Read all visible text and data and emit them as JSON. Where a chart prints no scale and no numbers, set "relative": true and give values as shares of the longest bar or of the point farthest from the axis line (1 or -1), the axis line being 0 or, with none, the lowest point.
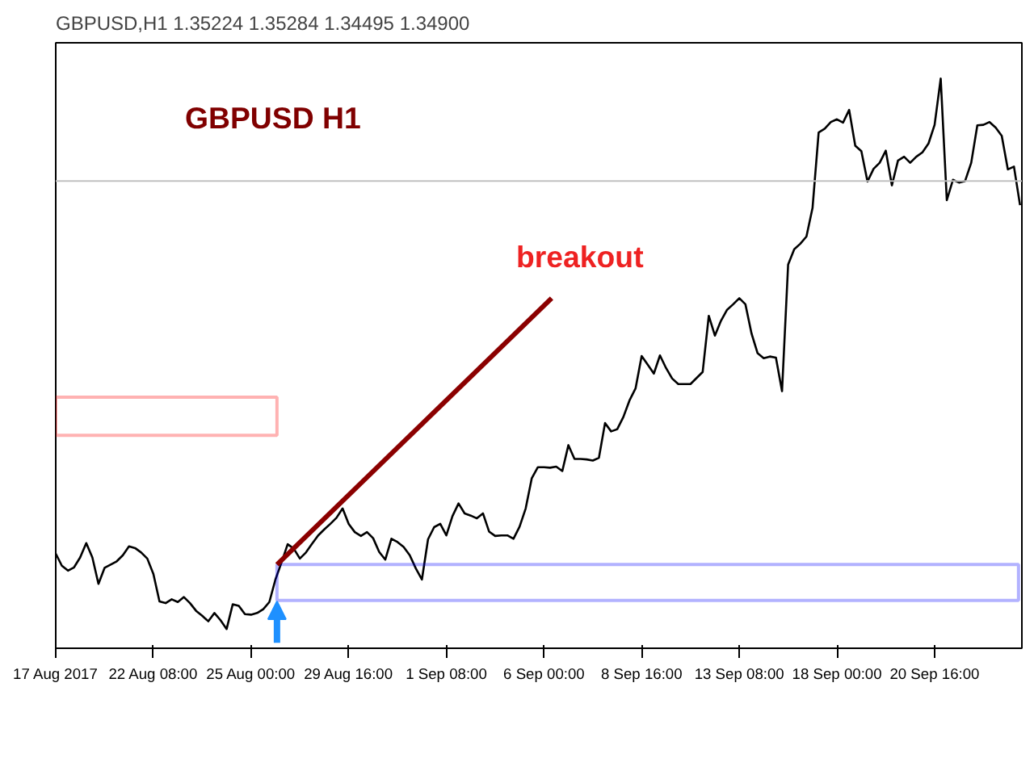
{
  "chart_data": {
    "type": "line",
    "title": "GBPUSD,H1  1.35224 1.35284 1.34495 1.34900",
    "relative": true,
    "grid": false,
    "tick_labels": "x",
    "categories": [
      "17 Aug 2017",
      null,
      null,
      null,
      null,
      null,
      null,
      null,
      null,
      null,
      null,
      null,
      null,
      null,
      null,
      null,
      "22 Aug 08:00",
      null,
      null,
      null,
      null,
      null,
      null,
      null,
      null,
      null,
      null,
      null,
      null,
      null,
      null,
      null,
      "25 Aug 00:00",
      null,
      null,
      null,
      null,
      null,
      null,
      null,
      null,
      null,
      null,
      null,
      null,
      null,
      null,
      null,
      "29 Aug 16:00",
      null,
      null,
      null,
      null,
      null,
      null,
      null,
      null,
      null,
      null,
      null,
      null,
      null,
      null,
      null,
      "1 Sep 08:00",
      null,
      null,
      null,
      null,
      null,
      null,
      null,
      null,
      null,
      null,
      null,
      null,
      null,
      null,
      null,
      "6 Sep 00:00",
      null,
      null,
      null,
      null,
      null,
      null,
      null,
      null,
      null,
      null,
      null,
      null,
      null,
      null,
      null,
      "8 Sep 16:00",
      null,
      null,
      null,
      null,
      null,
      null,
      null,
      null,
      null,
      null,
      null,
      null,
      null,
      null,
      null,
      "13 Sep 08:00",
      null,
      null,
      null,
      null,
      null,
      null,
      null,
      null,
      null,
      null,
      null,
      null,
      null,
      null,
      null,
      "18 Sep 00:00",
      null,
      null,
      null,
      null,
      null,
      null,
      null,
      null,
      null,
      null,
      null,
      null,
      null,
      null,
      null,
      "20 Sep 16:00",
      null,
      null,
      null,
      null,
      null,
      null,
      null,
      null,
      null,
      null,
      null,
      null,
      null,
      null
    ],
    "series": [
      {
        "color": "#000000",
        "values": [
          0.137,
          0.115,
          0.106,
          0.112,
          0.13,
          0.156,
          0.13,
          0.082,
          0.111,
          0.117,
          0.123,
          0.134,
          0.15,
          0.147,
          0.139,
          0.128,
          0.1,
          0.05,
          0.047,
          0.054,
          0.049,
          0.058,
          0.047,
          0.033,
          0.024,
          0.014,
          0.029,
          0.016,
          0,
          0.045,
          0.042,
          0.027,
          0.026,
          0.029,
          0.036,
          0.049,
          0.09,
          0.121,
          0.154,
          0.146,
          0.128,
          0.139,
          0.155,
          0.17,
          0.181,
          0.191,
          0.202,
          0.219,
          0.191,
          0.176,
          0.169,
          0.176,
          0.165,
          0.14,
          0.126,
          0.164,
          0.158,
          0.149,
          0.134,
          0.11,
          0.09,
          0.163,
          0.185,
          0.191,
          0.17,
          0.205,
          0.228,
          0.21,
          0.206,
          0.201,
          0.21,
          0.177,
          0.169,
          0.17,
          0.17,
          0.164,
          0.186,
          0.219,
          0.274,
          0.294,
          0.294,
          0.293,
          0.295,
          0.287,
          0.334,
          0.309,
          0.309,
          0.308,
          0.306,
          0.311,
          0.374,
          0.359,
          0.363,
          0.385,
          0.415,
          0.437,
          0.496,
          0.48,
          0.464,
          0.497,
          0.474,
          0.455,
          0.445,
          0.445,
          0.445,
          0.456,
          0.467,
          0.569,
          0.533,
          0.56,
          0.58,
          0.59,
          0.601,
          0.59,
          0.537,
          0.501,
          0.492,
          0.495,
          0.493,
          0.432,
          0.662,
          0.69,
          0.7,
          0.713,
          0.765,
          0.902,
          0.909,
          0.921,
          0.926,
          0.92,
          0.943,
          0.878,
          0.868,
          0.813,
          0.836,
          0.847,
          0.869,
          0.806,
          0.851,
          0.858,
          0.847,
          0.858,
          0.866,
          0.882,
          0.916,
          1,
          0.779,
          0.816,
          0.811,
          0.814,
          0.847,
          0.915,
          0.916,
          0.921,
          0.911,
          0.896,
          0.835,
          0.84,
          0.77
        ]
      }
    ],
    "ref_lines": [
      {
        "axis": "y",
        "value": 0.814,
        "color": "#c0c0c0"
      }
    ],
    "annotations": [
      "GBPUSD H1",
      "breakout"
    ]
  }
}
